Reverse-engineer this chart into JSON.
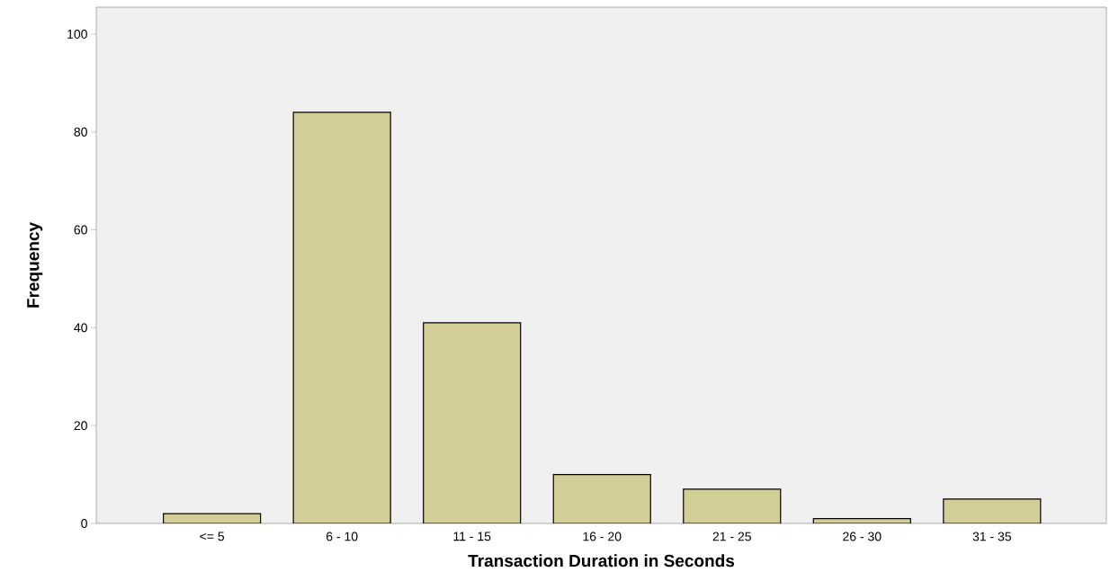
{
  "chart_data": {
    "type": "bar",
    "xlabel": "Transaction Duration in Seconds",
    "ylabel": "Frequency",
    "categories": [
      "<= 5",
      "6 - 10",
      "11 - 15",
      "16 - 20",
      "21 - 25",
      "26 - 30",
      "31 - 35"
    ],
    "values": [
      2,
      84,
      41,
      10,
      7,
      1,
      5
    ],
    "color": "#d3ce97",
    "ylim": [
      0,
      105.5
    ],
    "yticks": [
      0,
      20,
      40,
      60,
      80,
      100
    ],
    "grid": false
  }
}
